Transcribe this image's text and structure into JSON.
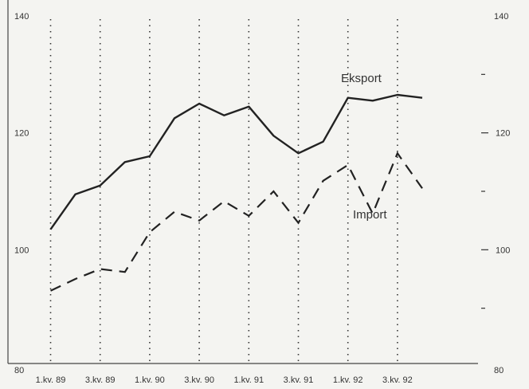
{
  "chart_data": {
    "type": "line",
    "x": [
      "1.kv. 89",
      "2.kv. 89",
      "3.kv. 89",
      "4.kv. 89",
      "1.kv. 90",
      "2.kv. 90",
      "3.kv. 90",
      "4.kv. 90",
      "1.kv. 91",
      "2.kv. 91",
      "3.kv. 91",
      "4.kv. 91",
      "1.kv. 92",
      "2.kv. 92",
      "3.kv. 92",
      "4.kv. 92"
    ],
    "x_tick_labels": [
      "1.kv. 89",
      "3.kv. 89",
      "1.kv. 90",
      "3.kv. 90",
      "1.kv. 91",
      "3.kv. 91",
      "1.kv. 92",
      "3.kv. 92"
    ],
    "series": [
      {
        "name": "Eksport",
        "style": "solid",
        "values": [
          103.5,
          109.5,
          111,
          115,
          116,
          122.5,
          125,
          123,
          124.5,
          119.5,
          116.5,
          118.5,
          126,
          125.5,
          126.5,
          126
        ]
      },
      {
        "name": "Import",
        "style": "dashed",
        "values": [
          93,
          95,
          96.7,
          96.2,
          103,
          106.5,
          105,
          108.3,
          105.8,
          110,
          104.6,
          111.8,
          114.5,
          106.2,
          116.5,
          110.5
        ]
      }
    ],
    "y_ticks_left": [
      80,
      100,
      120,
      140
    ],
    "y_ticks_right": [
      80,
      100,
      120,
      140
    ],
    "ylim": [
      80,
      140
    ],
    "grid": "vertical dotted at labelled quarters"
  }
}
